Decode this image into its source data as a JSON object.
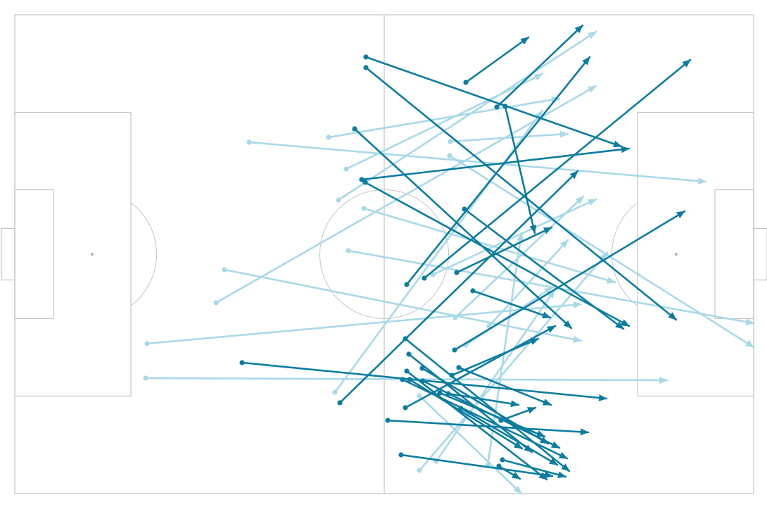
{
  "chart_data": {
    "type": "pass-map",
    "title": "",
    "xlabel": "",
    "ylabel": "",
    "pitch": {
      "length": 105,
      "width": 68
    },
    "colors": {
      "pitch_lines": "#c4c4c4",
      "background": "#ffffff",
      "passes_dark": "#0b7ca0",
      "passes_light": "#a9d9e8"
    },
    "series": [
      {
        "style": "light",
        "passes": [
          {
            "start": [
              33.3,
              49.9
            ],
            "end": [
              98.2,
              44.3
            ]
          },
          {
            "start": [
              44.6,
              50.6
            ],
            "end": [
              77.4,
              56.1
            ]
          },
          {
            "start": [
              46.0,
              41.7
            ],
            "end": [
              82.6,
              65.6
            ]
          },
          {
            "start": [
              28.6,
              27.1
            ],
            "end": [
              82.6,
              57.9
            ]
          },
          {
            "start": [
              29.8,
              31.8
            ],
            "end": [
              80.5,
              21.7
            ]
          },
          {
            "start": [
              18.8,
              21.3
            ],
            "end": [
              80.5,
              26.9
            ]
          },
          {
            "start": [
              18.6,
              16.4
            ],
            "end": [
              92.7,
              16.1
            ]
          },
          {
            "start": [
              49.6,
              40.5
            ],
            "end": [
              85.3,
              30.0
            ]
          },
          {
            "start": [
              47.4,
              34.5
            ],
            "end": [
              105.0,
              24.2
            ]
          },
          {
            "start": [
              47.1,
              46.1
            ],
            "end": [
              75.0,
              59.6
            ]
          },
          {
            "start": [
              61.8,
              48.0
            ],
            "end": [
              105.0,
              20.8
            ]
          },
          {
            "start": [
              45.5,
              14.4
            ],
            "end": [
              75.0,
              54.4
            ]
          },
          {
            "start": [
              57.5,
              3.3
            ],
            "end": [
              84.2,
              34.2
            ]
          },
          {
            "start": [
              67.2,
              4.0
            ],
            "end": [
              72.0,
              37.0
            ]
          },
          {
            "start": [
              59.9,
              4.6
            ],
            "end": [
              76.7,
              28.9
            ]
          },
          {
            "start": [
              57.5,
              13.9
            ],
            "end": [
              72.0,
              0.0
            ]
          },
          {
            "start": [
              61.9,
              50.0
            ],
            "end": [
              78.6,
              51.1
            ]
          },
          {
            "start": [
              59.4,
              31.1
            ],
            "end": [
              82.6,
              41.8
            ]
          },
          {
            "start": [
              62.6,
              25.0
            ],
            "end": [
              80.8,
              42.2
            ]
          },
          {
            "start": [
              64.1,
              21.1
            ],
            "end": [
              76.4,
              29.3
            ]
          },
          {
            "start": [
              67.4,
              23.8
            ],
            "end": [
              78.6,
              36.0
            ]
          }
        ]
      },
      {
        "style": "dark",
        "passes": [
          {
            "start": [
              49.9,
              62.0
            ],
            "end": [
              86.2,
              49.3
            ]
          },
          {
            "start": [
              49.9,
              60.5
            ],
            "end": [
              94.0,
              24.7
            ]
          },
          {
            "start": [
              64.1,
              58.4
            ],
            "end": [
              73.0,
              64.8
            ]
          },
          {
            "start": [
              69.7,
              55.0
            ],
            "end": [
              73.9,
              37.0
            ]
          },
          {
            "start": [
              68.5,
              54.9
            ],
            "end": [
              80.7,
              66.5
            ]
          },
          {
            "start": [
              48.3,
              51.8
            ],
            "end": [
              79.1,
              23.5
            ]
          },
          {
            "start": [
              49.3,
              44.6
            ],
            "end": [
              87.3,
              49.0
            ]
          },
          {
            "start": [
              49.8,
              44.2
            ],
            "end": [
              87.3,
              23.8
            ]
          },
          {
            "start": [
              55.7,
              29.7
            ],
            "end": [
              81.7,
              62.0
            ]
          },
          {
            "start": [
              63.9,
              40.4
            ],
            "end": [
              86.5,
              23.4
            ]
          },
          {
            "start": [
              58.2,
              30.6
            ],
            "end": [
              96.0,
              61.6
            ]
          },
          {
            "start": [
              46.2,
              12.9
            ],
            "end": [
              80.0,
              45.8
            ]
          },
          {
            "start": [
              65.1,
              28.8
            ],
            "end": [
              76.1,
              25.0
            ]
          },
          {
            "start": [
              62.5,
              20.4
            ],
            "end": [
              95.2,
              40.1
            ]
          },
          {
            "start": [
              62.8,
              31.4
            ],
            "end": [
              76.3,
              37.8
            ]
          },
          {
            "start": [
              32.3,
              18.6
            ],
            "end": [
              84.1,
              13.5
            ]
          },
          {
            "start": [
              55.5,
              22.0
            ],
            "end": [
              78.8,
              3.2
            ]
          },
          {
            "start": [
              62.1,
              16.8
            ],
            "end": [
              74.4,
              22.0
            ]
          },
          {
            "start": [
              55.1,
              16.2
            ],
            "end": [
              78.5,
              5.0
            ]
          },
          {
            "start": [
              61.6,
              14.2
            ],
            "end": [
              71.6,
              12.6
            ]
          },
          {
            "start": [
              55.5,
              12.2
            ],
            "end": [
              76.8,
              23.8
            ]
          },
          {
            "start": [
              63.1,
              17.9
            ],
            "end": [
              76.2,
              12.6
            ]
          },
          {
            "start": [
              53.0,
              10.4
            ],
            "end": [
              81.5,
              8.7
            ]
          },
          {
            "start": [
              56.0,
              19.8
            ],
            "end": [
              73.5,
              5.9
            ]
          },
          {
            "start": [
              56.1,
              16.2
            ],
            "end": [
              72.1,
              6.4
            ]
          },
          {
            "start": [
              57.9,
              17.8
            ],
            "end": [
              75.8,
              7.1
            ]
          },
          {
            "start": [
              58.0,
              16.0
            ],
            "end": [
              77.4,
              6.5
            ]
          },
          {
            "start": [
              60.4,
              14.3
            ],
            "end": [
              75.3,
              8.1
            ]
          },
          {
            "start": [
              63.4,
              12.1
            ],
            "end": [
              77.1,
              4.1
            ]
          },
          {
            "start": [
              55.7,
              17.4
            ],
            "end": [
              75.6,
              2.0
            ]
          },
          {
            "start": [
              69.1,
              10.4
            ],
            "end": [
              74.0,
              12.2
            ]
          },
          {
            "start": [
              54.9,
              5.5
            ],
            "end": [
              76.4,
              2.5
            ]
          },
          {
            "start": [
              69.3,
              4.8
            ],
            "end": [
              78.3,
              2.4
            ]
          },
          {
            "start": [
              68.8,
              3.9
            ],
            "end": [
              71.8,
              2.1
            ]
          }
        ]
      }
    ]
  }
}
